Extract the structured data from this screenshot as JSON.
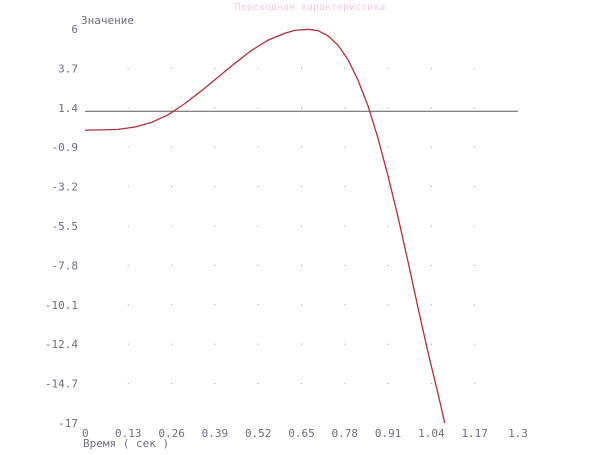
{
  "chart_data": {
    "type": "line",
    "title": "Переходная характеристика",
    "xlabel": "Время ( сек )",
    "ylabel": "Значение",
    "xlim": [
      0,
      1.3
    ],
    "ylim": [
      -17,
      6
    ],
    "x_ticks": [
      "0",
      "0.13",
      "0.26",
      "0.39",
      "0.52",
      "0.65",
      "0.78",
      "0.91",
      "1.04",
      "1.17",
      "1.3"
    ],
    "y_ticks": [
      "6",
      "3.7",
      "1.4",
      "-0.9",
      "-3.2",
      "-5.5",
      "-7.8",
      "-10.1",
      "-12.4",
      "-14.7",
      "-17"
    ],
    "grid": "dotted",
    "reference_line": {
      "y": 1.2,
      "color": "#5a5a5a"
    },
    "series": [
      {
        "color": "#b0303a",
        "points": [
          [
            0.0,
            0.1
          ],
          [
            0.05,
            0.11
          ],
          [
            0.1,
            0.14
          ],
          [
            0.15,
            0.28
          ],
          [
            0.2,
            0.55
          ],
          [
            0.25,
            1.0
          ],
          [
            0.3,
            1.65
          ],
          [
            0.35,
            2.4
          ],
          [
            0.4,
            3.2
          ],
          [
            0.45,
            4.0
          ],
          [
            0.5,
            4.75
          ],
          [
            0.55,
            5.35
          ],
          [
            0.6,
            5.75
          ],
          [
            0.63,
            5.92
          ],
          [
            0.67,
            5.98
          ],
          [
            0.7,
            5.9
          ],
          [
            0.73,
            5.6
          ],
          [
            0.76,
            5.05
          ],
          [
            0.79,
            4.2
          ],
          [
            0.82,
            3.0
          ],
          [
            0.85,
            1.5
          ],
          [
            0.88,
            -0.4
          ],
          [
            0.91,
            -2.6
          ],
          [
            0.94,
            -5.0
          ],
          [
            0.97,
            -7.6
          ],
          [
            1.0,
            -10.3
          ],
          [
            1.03,
            -12.9
          ],
          [
            1.06,
            -15.3
          ],
          [
            1.08,
            -17.0
          ]
        ]
      }
    ]
  }
}
